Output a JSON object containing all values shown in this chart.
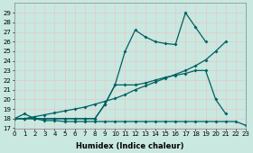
{
  "xlabel": "Humidex (Indice chaleur)",
  "line_color": "#006060",
  "bg_color": "#c8e8e0",
  "grid_color": "#e8c8c8",
  "ylim": [
    17,
    30
  ],
  "xlim": [
    0,
    23
  ],
  "yticks": [
    17,
    18,
    19,
    20,
    21,
    22,
    23,
    24,
    25,
    26,
    27,
    28,
    29
  ],
  "xticks": [
    0,
    1,
    2,
    3,
    4,
    5,
    6,
    7,
    8,
    9,
    10,
    11,
    12,
    13,
    14,
    15,
    16,
    17,
    18,
    19,
    20,
    21,
    22,
    23
  ],
  "line1_x": [
    0,
    1,
    2,
    3,
    4,
    5,
    6,
    7,
    8,
    9,
    10,
    11,
    12,
    13,
    14,
    15,
    16,
    17,
    18,
    19,
    20,
    21,
    22,
    23
  ],
  "line1_y": [
    18,
    18.5,
    18,
    17.8,
    17.8,
    17.7,
    17.7,
    17.7,
    17.7,
    17.7,
    17.7,
    17.7,
    17.7,
    17.7,
    17.7,
    17.7,
    17.7,
    17.7,
    17.7,
    17.7,
    17.7,
    17.7,
    17.7,
    17.3
  ],
  "line2_x": [
    0,
    1,
    2,
    3,
    4,
    5,
    6,
    7,
    8,
    9,
    10,
    11,
    12,
    13,
    14,
    15,
    16,
    17,
    18,
    19
  ],
  "line2_y": [
    18,
    18,
    18,
    18,
    18,
    18,
    18,
    18,
    18,
    19.5,
    21.5,
    25.0,
    27.2,
    26.5,
    26.0,
    25.8,
    25.7,
    29.0,
    27.5,
    26.0
  ],
  "line3_x": [
    0,
    1,
    2,
    3,
    4,
    5,
    6,
    7,
    8,
    9,
    10,
    11,
    12,
    13,
    14,
    15,
    16,
    17,
    18,
    19,
    20,
    21
  ],
  "line3_y": [
    18,
    18,
    18,
    18,
    18,
    18,
    18,
    18,
    18,
    19.5,
    21.5,
    21.5,
    21.5,
    21.7,
    22.0,
    22.3,
    22.5,
    22.7,
    23.0,
    23.0,
    20.0,
    18.5
  ],
  "line4_x": [
    0,
    1,
    2,
    3,
    4,
    5,
    6,
    7,
    8,
    9,
    10,
    11,
    12,
    13,
    14,
    15,
    16,
    17,
    18,
    19,
    20,
    21
  ],
  "line4_y": [
    18,
    18,
    18.2,
    18.4,
    18.6,
    18.8,
    19.0,
    19.2,
    19.5,
    19.8,
    20.1,
    20.5,
    21.0,
    21.4,
    21.8,
    22.2,
    22.6,
    23.0,
    23.5,
    24.1,
    25.0,
    26.0
  ],
  "marker_size": 2.0,
  "line_width": 0.9,
  "tick_fontsize": 5.0,
  "xlabel_fontsize": 6.0
}
